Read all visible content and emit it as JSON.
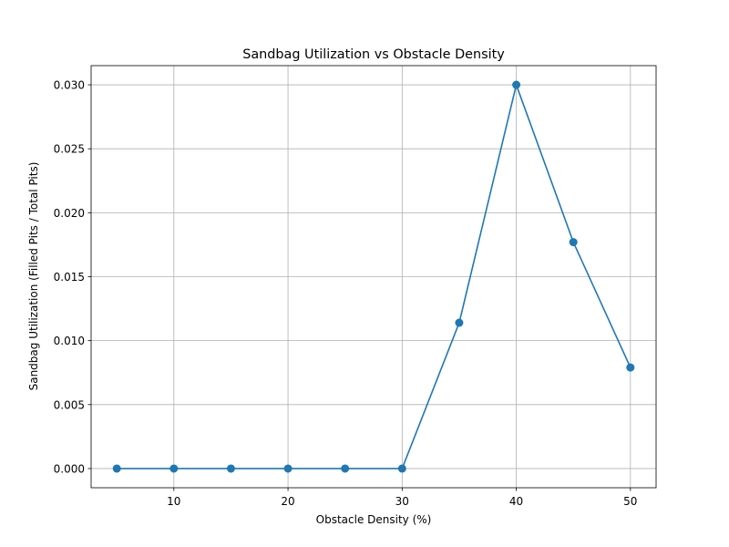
{
  "chart_data": {
    "type": "line",
    "title": "Sandbag Utilization vs Obstacle Density",
    "xlabel": "Obstacle Density (%)",
    "ylabel": "Sandbag Utilization (Filled Pits / Total Pits)",
    "x": [
      5,
      10,
      15,
      20,
      25,
      30,
      35,
      40,
      45,
      50
    ],
    "series": [
      {
        "values": [
          0.0,
          0.0,
          0.0,
          0.0,
          0.0,
          0.0,
          0.0114,
          0.03,
          0.0177,
          0.0079
        ],
        "color": "#1f77b4",
        "marker": "circle"
      }
    ],
    "xlim": [
      2.75,
      52.25
    ],
    "ylim": [
      -0.0015,
      0.0315
    ],
    "xticks": [
      10,
      20,
      30,
      40,
      50
    ],
    "xtick_labels": [
      "10",
      "20",
      "30",
      "40",
      "50"
    ],
    "yticks": [
      0.0,
      0.005,
      0.01,
      0.015,
      0.02,
      0.025,
      0.03
    ],
    "ytick_labels": [
      "0.000",
      "0.005",
      "0.010",
      "0.015",
      "0.020",
      "0.025",
      "0.030"
    ],
    "grid": true,
    "legend": "none"
  }
}
